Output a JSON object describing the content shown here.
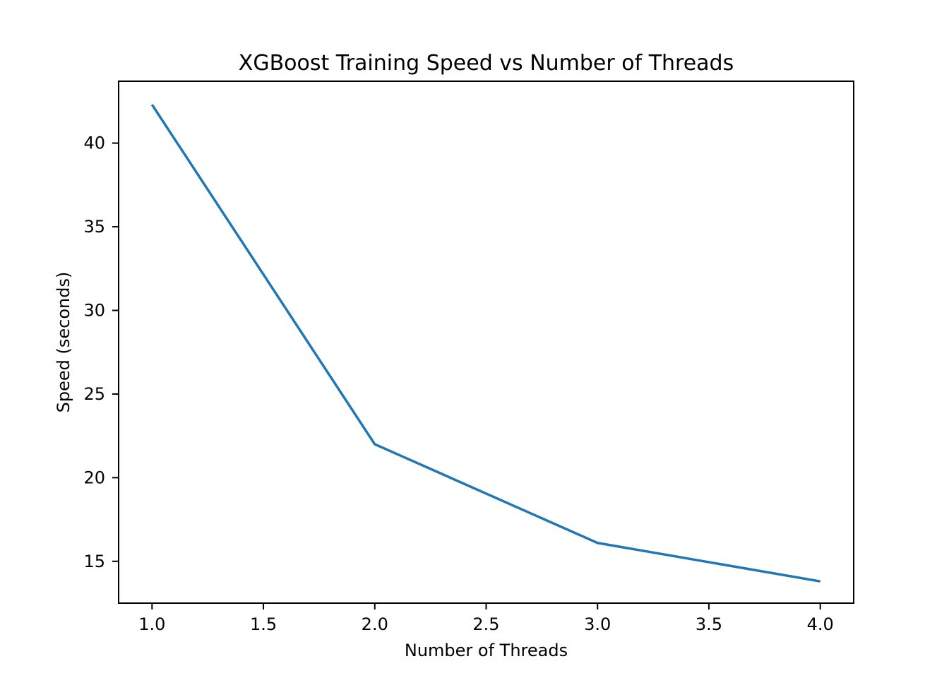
{
  "chart_data": {
    "type": "line",
    "title": "XGBoost Training Speed vs Number of Threads",
    "xlabel": "Number of Threads",
    "ylabel": "Speed (seconds)",
    "xlim": [
      0.85,
      4.15
    ],
    "ylim": [
      12.5,
      43.7
    ],
    "x_ticks": [
      1.0,
      1.5,
      2.0,
      2.5,
      3.0,
      3.5,
      4.0
    ],
    "x_tick_labels": [
      "1.0",
      "1.5",
      "2.0",
      "2.5",
      "3.0",
      "3.5",
      "4.0"
    ],
    "y_ticks": [
      15,
      20,
      25,
      30,
      35,
      40
    ],
    "y_tick_labels": [
      "15",
      "20",
      "25",
      "30",
      "35",
      "40"
    ],
    "grid": false,
    "series": [
      {
        "x": [
          1,
          2,
          3,
          4
        ],
        "values": [
          42.3,
          22.0,
          16.1,
          13.8
        ],
        "color": "#1f77b4"
      }
    ]
  }
}
